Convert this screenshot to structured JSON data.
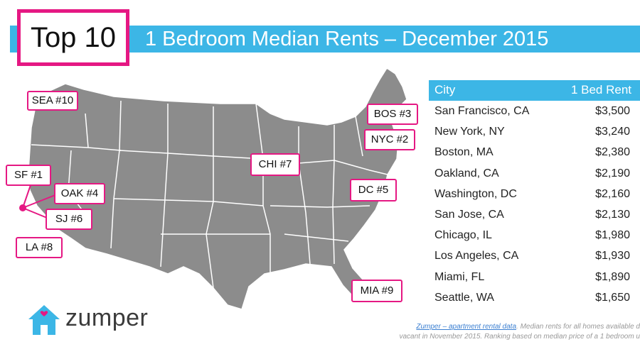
{
  "header": {
    "badge": "Top 10",
    "title": "1 Bedroom Median Rents – December 2015"
  },
  "map_labels": {
    "sea": "SEA #10",
    "sf": "SF #1",
    "oak": "OAK #4",
    "sj": "SJ #6",
    "la": "LA #8",
    "chi": "CHI #7",
    "bos": "BOS #3",
    "nyc": "NYC #2",
    "dc": "DC #5",
    "mia": "MIA #9"
  },
  "table": {
    "headers": [
      "City",
      "1 Bed Rent"
    ],
    "rows": [
      {
        "city": "San Francisco, CA",
        "rent": "$3,500"
      },
      {
        "city": "New York, NY",
        "rent": "$3,240"
      },
      {
        "city": "Boston, MA",
        "rent": "$2,380"
      },
      {
        "city": "Oakland, CA",
        "rent": "$2,190"
      },
      {
        "city": "Washington, DC",
        "rent": "$2,160"
      },
      {
        "city": "San Jose, CA",
        "rent": "$2,130"
      },
      {
        "city": "Chicago, IL",
        "rent": "$1,980"
      },
      {
        "city": "Los Angeles, CA",
        "rent": "$1,930"
      },
      {
        "city": "Miami, FL",
        "rent": "$1,890"
      },
      {
        "city": "Seattle, WA",
        "rent": "$1,650"
      }
    ]
  },
  "brand": {
    "name": "zumper",
    "house_icon": "house-icon",
    "colors": {
      "accent": "#3cb6e6",
      "highlight": "#e51883",
      "map": "#8c8c8c"
    }
  },
  "footnote": {
    "link": "Zumper – apartment rental data",
    "line1_rest": ". Median rents for all homes available d",
    "line2": "vacant in November 2015. Ranking based on median price of a 1 bedroom u"
  }
}
